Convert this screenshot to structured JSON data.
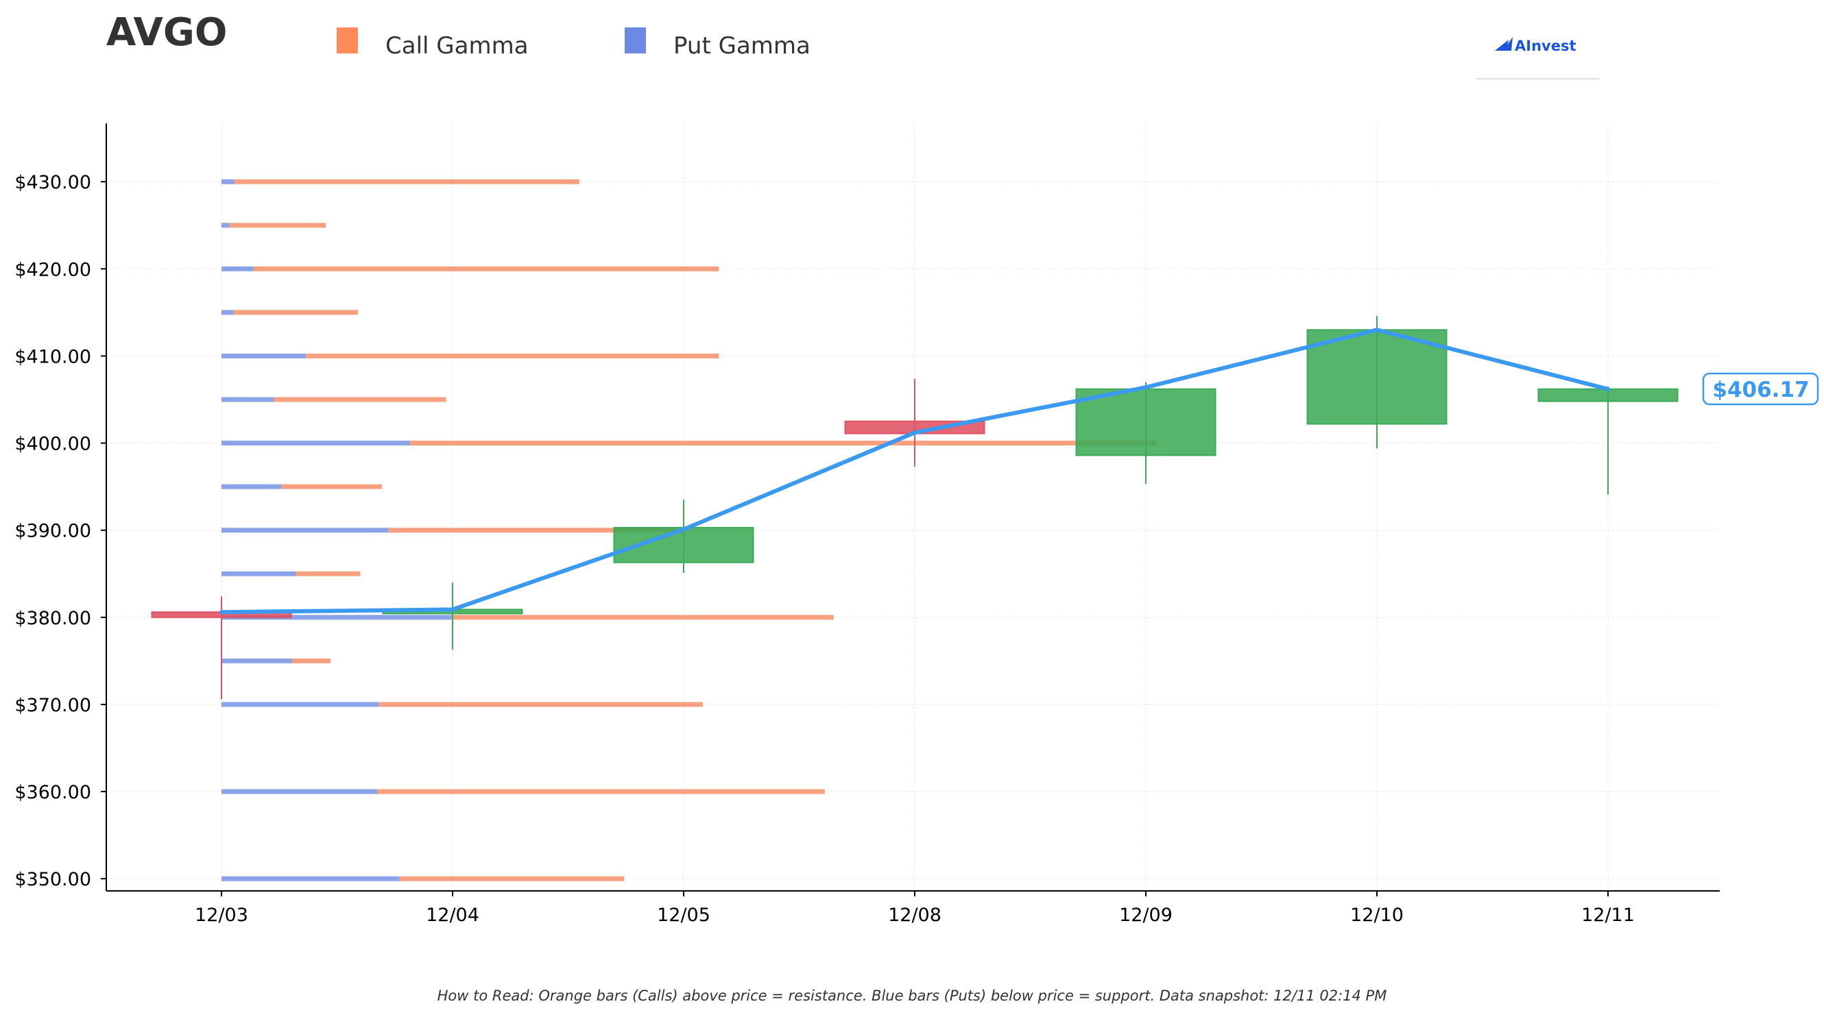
{
  "ticker": "AVGO",
  "legend": [
    {
      "label": "Call Gamma",
      "color": "#ff8a5c"
    },
    {
      "label": "Put Gamma",
      "color": "#6c8ae4"
    }
  ],
  "logo": {
    "text": "AInvest",
    "color": "#1a56db"
  },
  "footnote": "How to Read: Orange bars (Calls) above price = resistance. Blue bars (Puts) below price = support. Data snapshot: 12/11 02:14 PM",
  "chart_data": {
    "type": "candlestick",
    "ylim": [
      348.6,
      436.7
    ],
    "yticks": [
      350,
      360,
      370,
      380,
      390,
      400,
      410,
      420,
      430
    ],
    "ytick_labels": [
      "$350.00",
      "$360.00",
      "$370.00",
      "$380.00",
      "$390.00",
      "$400.00",
      "$410.00",
      "$420.00",
      "$430.00"
    ],
    "categories": [
      "12/03",
      "12/04",
      "12/05",
      "12/08",
      "12/09",
      "12/10",
      "12/11"
    ],
    "candles": [
      {
        "date": "12/03",
        "open": 380.6,
        "high": 382.4,
        "low": 370.6,
        "close": 380.0
      },
      {
        "date": "12/04",
        "open": 380.8,
        "high": 384.0,
        "low": 376.3,
        "close": 380.9
      },
      {
        "date": "12/05",
        "open": 386.3,
        "high": 393.5,
        "low": 385.1,
        "close": 390.3
      },
      {
        "date": "12/08",
        "open": 402.5,
        "high": 407.4,
        "low": 397.3,
        "close": 401.1
      },
      {
        "date": "12/09",
        "open": 398.6,
        "high": 407.0,
        "low": 395.3,
        "close": 406.2
      },
      {
        "date": "12/10",
        "open": 402.2,
        "high": 414.6,
        "low": 399.4,
        "close": 413.0
      },
      {
        "date": "12/11",
        "open": 404.8,
        "high": 406.5,
        "low": 394.1,
        "close": 406.2
      }
    ],
    "close_line": [
      380.6,
      380.9,
      390.1,
      401.2,
      406.4,
      413.0,
      406.2
    ],
    "last_price_label": "$406.17",
    "gamma_bars": [
      {
        "strike": 430,
        "put": 0.16,
        "call": 4.3
      },
      {
        "strike": 425,
        "put": 0.1,
        "call": 1.2
      },
      {
        "strike": 420,
        "put": 0.4,
        "call": 5.8
      },
      {
        "strike": 415,
        "put": 0.15,
        "call": 1.55
      },
      {
        "strike": 410,
        "put": 1.05,
        "call": 5.15
      },
      {
        "strike": 405,
        "put": 0.65,
        "call": 2.15
      },
      {
        "strike": 400,
        "put": 2.35,
        "call": 9.3
      },
      {
        "strike": 395,
        "put": 0.75,
        "call": 1.25
      },
      {
        "strike": 390,
        "put": 2.08,
        "call": 3.6
      },
      {
        "strike": 385,
        "put": 0.93,
        "call": 0.8
      },
      {
        "strike": 380,
        "put": 2.87,
        "call": 4.76
      },
      {
        "strike": 375,
        "put": 0.88,
        "call": 0.48
      },
      {
        "strike": 370,
        "put": 1.96,
        "call": 4.04
      },
      {
        "strike": 360,
        "put": 1.94,
        "call": 5.58
      },
      {
        "strike": 350,
        "put": 2.22,
        "call": 2.8
      }
    ],
    "colors": {
      "up": "#3cab57",
      "down": "#e05263",
      "close_line": "#3b99ef",
      "call": "#f7a07f",
      "put": "#8aa3e8",
      "grid": "#eeeeee"
    }
  }
}
